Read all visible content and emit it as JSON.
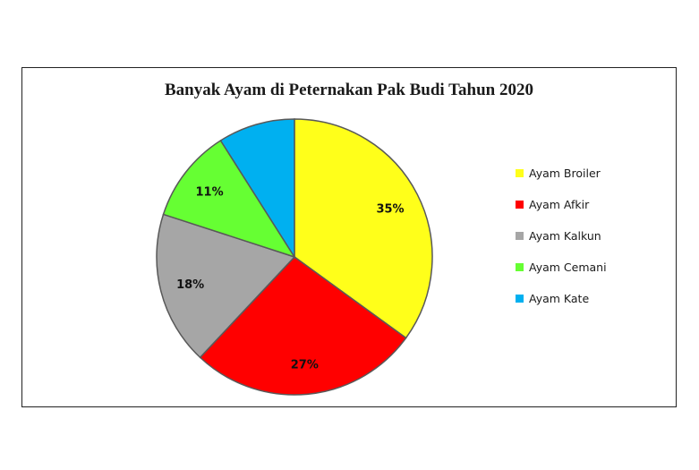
{
  "chart_data": {
    "type": "pie",
    "title": "Banyak Ayam di Peternakan Pak Budi Tahun 2020",
    "start_angle": "12 o'clock, clockwise",
    "slices": [
      {
        "name": "Ayam Broiler",
        "value": 35,
        "label": "35%",
        "color": "#FFFF1A"
      },
      {
        "name": "Ayam Afkir",
        "value": 27,
        "label": "27%",
        "color": "#FF0000"
      },
      {
        "name": "Ayam Kalkun",
        "value": 18,
        "label": "18%",
        "color": "#A6A6A6"
      },
      {
        "name": "Ayam Cemani",
        "value": 11,
        "label": "11%",
        "color": "#66FF33"
      },
      {
        "name": "Ayam Kate",
        "value": 9,
        "label": "",
        "color": "#00B0F0"
      }
    ],
    "legend_position": "right",
    "slice_border_color": "#595959"
  }
}
